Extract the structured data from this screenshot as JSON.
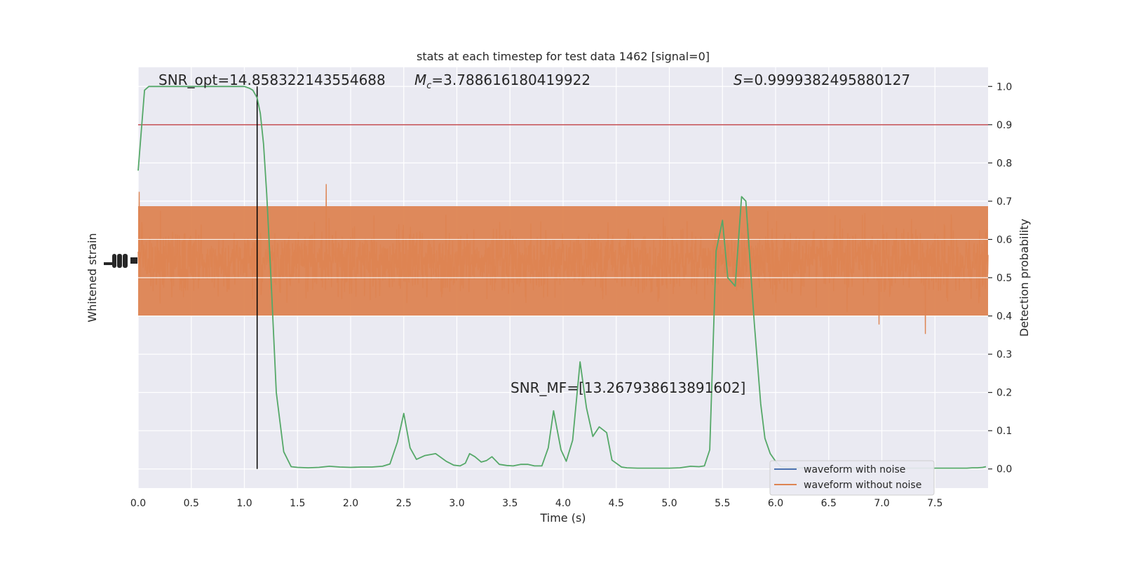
{
  "chart_data": {
    "type": "line",
    "title": "stats at each timestep for test data 1462 [signal=0]",
    "xlabel": "Time (s)",
    "ylabel_left": "Whitened strain",
    "ylabel_right": "Detection probability",
    "xlim": [
      0,
      8
    ],
    "ylim_right": [
      -0.05,
      1.05
    ],
    "grid": true,
    "x_ticks": [
      "0.0",
      "0.5",
      "1.0",
      "1.5",
      "2.0",
      "2.5",
      "3.0",
      "3.5",
      "4.0",
      "4.5",
      "5.0",
      "5.5",
      "6.0",
      "6.5",
      "7.0",
      "7.5"
    ],
    "x_tick_values": [
      0,
      0.5,
      1,
      1.5,
      2,
      2.5,
      3,
      3.5,
      4,
      4.5,
      5,
      5.5,
      6,
      6.5,
      7,
      7.5
    ],
    "y_right_ticks": [
      "0.0",
      "0.1",
      "0.2",
      "0.3",
      "0.4",
      "0.5",
      "0.6",
      "0.7",
      "0.8",
      "0.9",
      "1.0"
    ],
    "y_right_tick_values": [
      0,
      0.1,
      0.2,
      0.3,
      0.4,
      0.5,
      0.6,
      0.7,
      0.8,
      0.9,
      1.0
    ],
    "annotations": {
      "snr_opt": "SNR_opt=14.858322143554688",
      "mc_symbol": "M",
      "mc_sub": "c",
      "mc_value": "=3.788616180419922",
      "s_symbol": "S",
      "s_value": "=0.9999382495880127",
      "snr_mf": "SNR_MF=[13.267938613891602]"
    },
    "legend": {
      "placement": "bottom-right",
      "entries": [
        {
          "label": "waveform with noise",
          "color": "#4c72b0"
        },
        {
          "label": "waveform without noise",
          "color": "#dd8452"
        }
      ]
    },
    "threshold": {
      "y": 0.9,
      "color": "#c44e52"
    },
    "marker_time": 1.12,
    "colors": {
      "noise": "#dd8452",
      "prob": "#55a868",
      "marker": "#000000",
      "bg": "#eaeaf2"
    },
    "series": [
      {
        "name": "Detection probability",
        "color": "#55a868",
        "x": [
          0,
          0.06,
          0.1,
          0.15,
          0.2,
          0.3,
          0.4,
          0.5,
          0.6,
          0.7,
          0.8,
          0.9,
          1.0,
          1.05,
          1.08,
          1.12,
          1.15,
          1.18,
          1.21,
          1.25,
          1.3,
          1.37,
          1.44,
          1.5,
          1.6,
          1.7,
          1.8,
          1.9,
          2.0,
          2.1,
          2.2,
          2.3,
          2.37,
          2.44,
          2.5,
          2.56,
          2.62,
          2.7,
          2.8,
          2.9,
          2.97,
          3.03,
          3.08,
          3.12,
          3.17,
          3.23,
          3.28,
          3.33,
          3.4,
          3.47,
          3.53,
          3.6,
          3.67,
          3.73,
          3.8,
          3.86,
          3.91,
          3.98,
          4.03,
          4.09,
          4.16,
          4.22,
          4.28,
          4.34,
          4.41,
          4.46,
          4.55,
          4.6,
          4.7,
          4.8,
          4.9,
          5.0,
          5.1,
          5.2,
          5.28,
          5.33,
          5.38,
          5.44,
          5.5,
          5.55,
          5.62,
          5.68,
          5.72,
          5.8,
          5.86,
          5.9,
          5.95,
          6.0,
          6.05,
          6.1,
          6.2,
          6.3,
          6.4,
          6.5,
          6.6,
          6.7,
          6.8,
          6.9,
          7.0,
          7.1,
          7.2,
          7.3,
          7.4,
          7.5,
          7.6,
          7.7,
          7.8,
          7.85,
          7.9,
          7.95,
          7.98
        ],
        "y": [
          0.78,
          0.99,
          1.0,
          1.0,
          1.0,
          1.0,
          1.0,
          1.0,
          1.0,
          1.0,
          1.0,
          1.0,
          1.0,
          0.995,
          0.99,
          0.97,
          0.93,
          0.85,
          0.72,
          0.5,
          0.2,
          0.045,
          0.006,
          0.004,
          0.003,
          0.004,
          0.007,
          0.005,
          0.004,
          0.005,
          0.005,
          0.007,
          0.013,
          0.07,
          0.145,
          0.055,
          0.025,
          0.035,
          0.04,
          0.02,
          0.01,
          0.008,
          0.015,
          0.04,
          0.032,
          0.018,
          0.022,
          0.032,
          0.012,
          0.009,
          0.008,
          0.012,
          0.012,
          0.008,
          0.008,
          0.055,
          0.152,
          0.05,
          0.02,
          0.075,
          0.28,
          0.16,
          0.085,
          0.11,
          0.095,
          0.023,
          0.005,
          0.003,
          0.002,
          0.002,
          0.002,
          0.002,
          0.003,
          0.007,
          0.006,
          0.008,
          0.05,
          0.57,
          0.65,
          0.5,
          0.478,
          0.712,
          0.7,
          0.38,
          0.17,
          0.08,
          0.04,
          0.02,
          0.006,
          0.004,
          0.003,
          0.003,
          0.003,
          0.002,
          0.002,
          0.002,
          0.002,
          0.002,
          0.002,
          0.002,
          0.002,
          0.002,
          0.002,
          0.002,
          0.002,
          0.002,
          0.002,
          0.003,
          0.003,
          0.004,
          0.006
        ]
      }
    ]
  }
}
